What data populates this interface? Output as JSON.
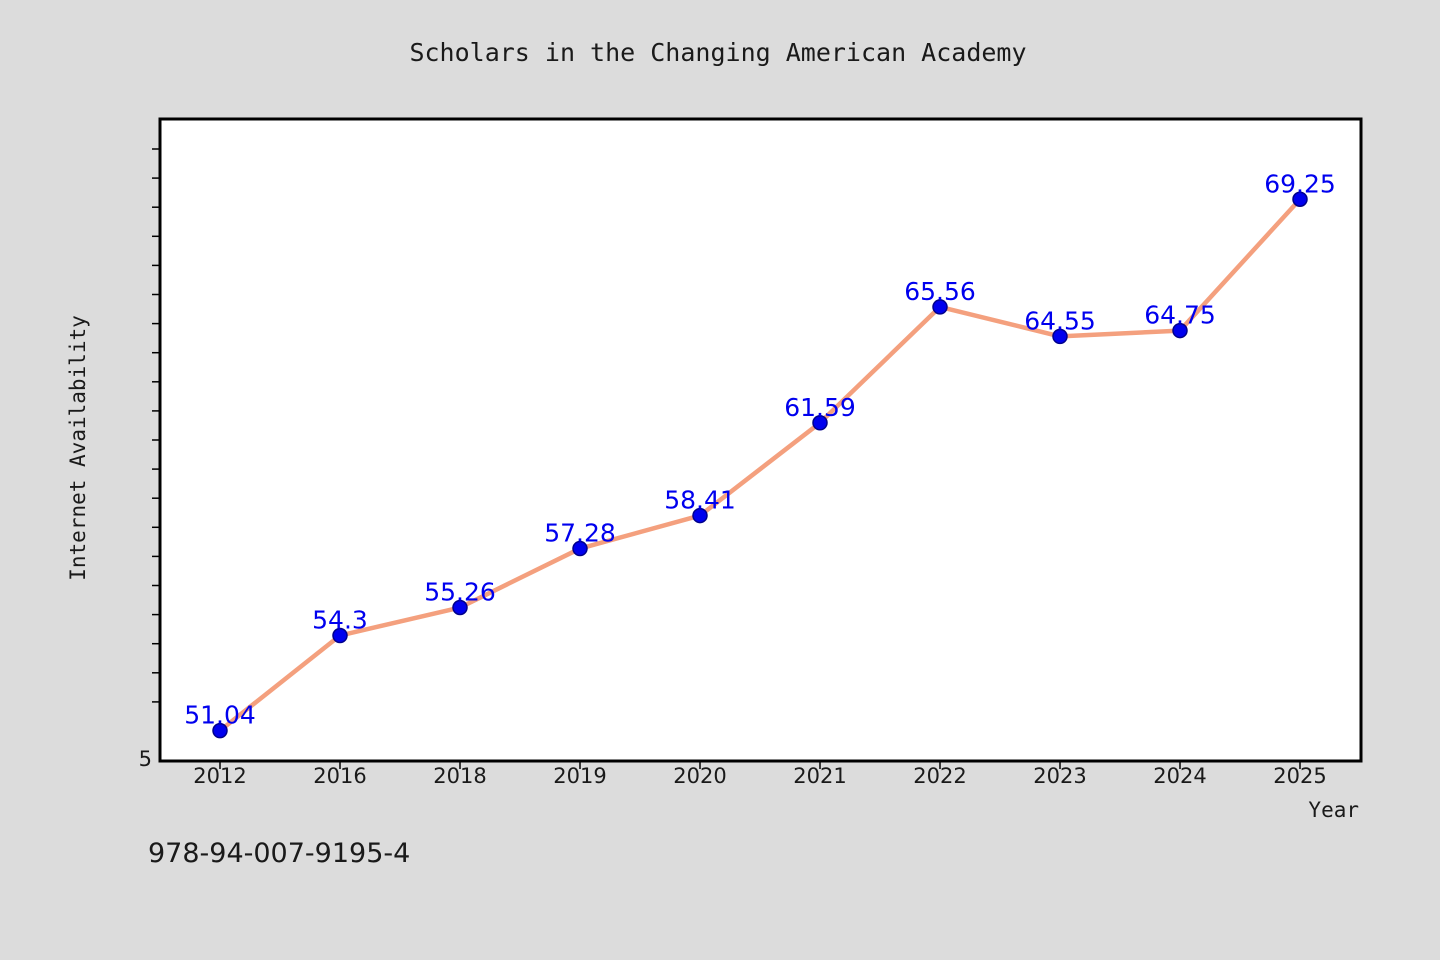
{
  "chart_data": {
    "type": "line",
    "title": "Scholars in the Changing American Academy",
    "xlabel": "Year",
    "ylabel": "Internet Availability",
    "categories": [
      "2012",
      "2016",
      "2018",
      "2019",
      "2020",
      "2021",
      "2022",
      "2023",
      "2024",
      "2025"
    ],
    "values": [
      51.04,
      54.3,
      55.26,
      57.28,
      58.41,
      61.59,
      65.56,
      64.55,
      64.75,
      69.25
    ],
    "data_labels": [
      "51.04",
      "54.3",
      "55.26",
      "57.28",
      "58.41",
      "61.59",
      "65.56",
      "64.55",
      "64.75",
      "69.25"
    ],
    "y_tick_labels": [
      "5"
    ],
    "ylim": [
      50,
      72
    ],
    "grid": false,
    "legend": "none",
    "colors": {
      "line": "#f4a07e",
      "marker": "#0000ee",
      "label": "#0000ee",
      "background": "#dcdcdc",
      "plot_background": "#ffffff"
    }
  },
  "footer": {
    "code": "978-94-007-9195-4"
  }
}
